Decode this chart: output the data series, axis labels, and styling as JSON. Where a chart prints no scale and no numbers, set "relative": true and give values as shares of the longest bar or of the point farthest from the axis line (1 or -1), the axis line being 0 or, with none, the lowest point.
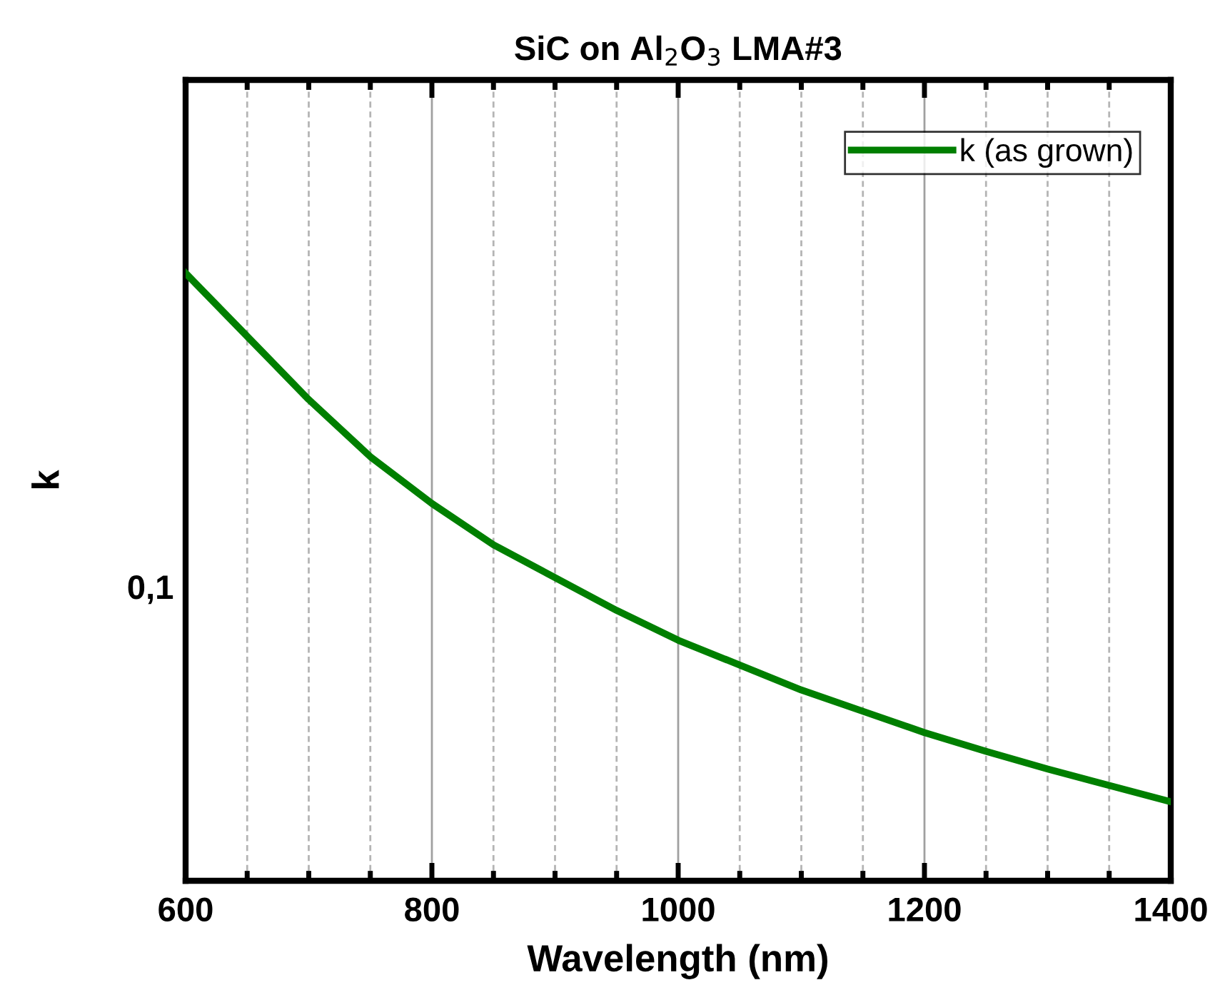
{
  "chart_data": {
    "type": "line",
    "title": "SiC on Al$_{2}$O$_{3}$ LMA#3",
    "xlabel": "Wavelength (nm)",
    "ylabel": "k",
    "x": [
      600,
      650,
      700,
      750,
      800,
      850,
      900,
      950,
      1000,
      1050,
      1100,
      1150,
      1200,
      1250,
      1300,
      1350,
      1400
    ],
    "series": [
      {
        "name": "k (as grown)",
        "color": "#007f00",
        "values": [
          1,
          0.896,
          0.792,
          0.698,
          0.621,
          0.553,
          0.499,
          0.445,
          0.396,
          0.355,
          0.314,
          0.279,
          0.244,
          0.213,
          0.184,
          0.157,
          0.13
        ]
      }
    ],
    "relative": true,
    "annotations": [
      "0,1"
    ],
    "xlim": [
      600,
      1400
    ],
    "xticks": [
      600,
      {
        "value": 650,
        "label": null
      },
      {
        "value": 700,
        "label": null
      },
      {
        "value": 750,
        "label": null
      },
      800,
      {
        "value": 850,
        "label": null
      },
      {
        "value": 900,
        "label": null
      },
      {
        "value": 950,
        "label": null
      },
      1000,
      {
        "value": 1050,
        "label": null
      },
      {
        "value": 1100,
        "label": null
      },
      {
        "value": 1150,
        "label": null
      },
      1200,
      {
        "value": 1250,
        "label": null
      },
      {
        "value": 1300,
        "label": null
      },
      {
        "value": 1350,
        "label": null
      },
      1400
    ],
    "grid": "x",
    "legend": "top right",
    "line_style": "solid",
    "marker": "none"
  }
}
